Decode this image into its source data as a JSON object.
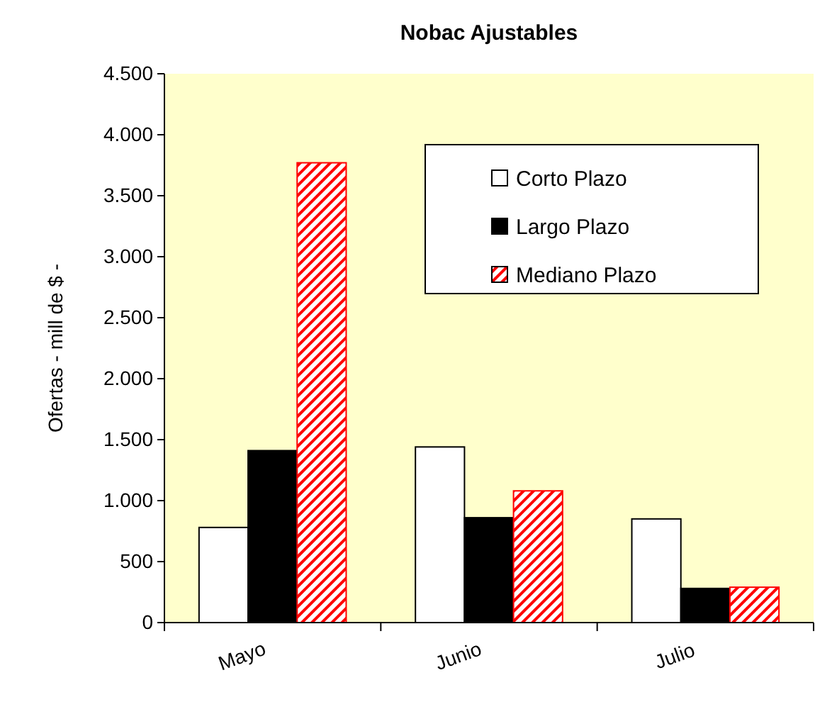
{
  "chart_data": {
    "type": "bar",
    "title": "Nobac Ajustables",
    "ylabel": "Ofertas - mill de $ -",
    "categories": [
      "Mayo",
      "Junio",
      "Julio"
    ],
    "series": [
      {
        "name": "Corto Plazo",
        "color": "#ffffff",
        "values": [
          780,
          1440,
          850
        ]
      },
      {
        "name": "Largo Plazo",
        "color": "#000000",
        "values": [
          1410,
          860,
          280
        ]
      },
      {
        "name": "Mediano Plazo",
        "color": "#ff0000",
        "values": [
          3770,
          1080,
          290
        ]
      }
    ],
    "ylim": [
      0,
      4500
    ],
    "yticks": [
      {
        "value": 0,
        "label": "0"
      },
      {
        "value": 500,
        "label": "500"
      },
      {
        "value": 1000,
        "label": "1.000"
      },
      {
        "value": 1500,
        "label": "1.500"
      },
      {
        "value": 2000,
        "label": "2.000"
      },
      {
        "value": 2500,
        "label": "2.500"
      },
      {
        "value": 3000,
        "label": "3.000"
      },
      {
        "value": 3500,
        "label": "3.500"
      },
      {
        "value": 4000,
        "label": "4.000"
      },
      {
        "value": 4500,
        "label": "4.500"
      }
    ],
    "grid": false,
    "legend": "top right"
  }
}
